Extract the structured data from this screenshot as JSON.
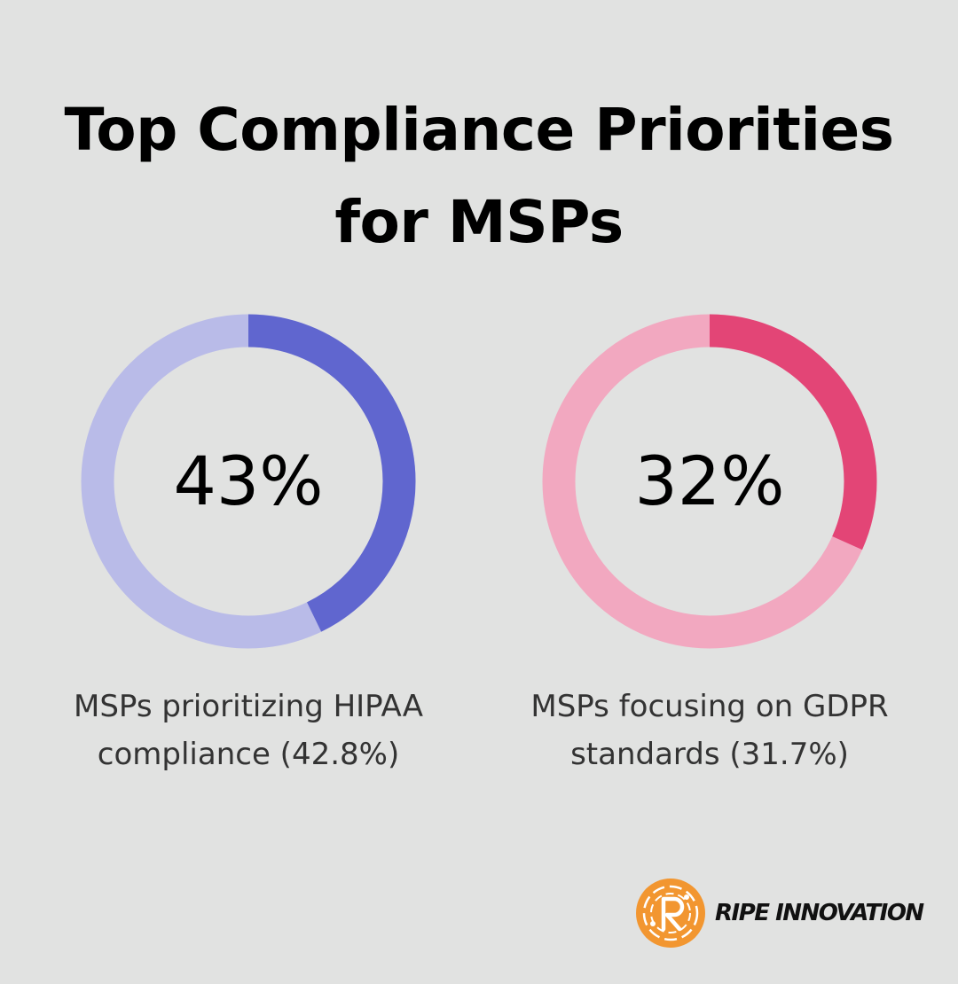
{
  "title": {
    "line1": "Top Compliance Priorities",
    "line2": "for MSPs"
  },
  "chart_data": [
    {
      "type": "pie",
      "variant": "donut",
      "value_percent": 42.8,
      "center_label": "43%",
      "caption_line1": "MSPs prioritizing HIPAA",
      "caption_line2": "compliance (42.8%)",
      "colors": {
        "filled": "#6066cf",
        "track": "#b9bbe8"
      }
    },
    {
      "type": "pie",
      "variant": "donut",
      "value_percent": 31.7,
      "center_label": "32%",
      "caption_line1": "MSPs focusing on GDPR",
      "caption_line2": "standards (31.7%)",
      "colors": {
        "filled": "#e34576",
        "track": "#f2a8c0"
      }
    }
  ],
  "brand": {
    "name": "RIPE INNOVATION",
    "logo_icon": "ripe-innovation-logo-icon",
    "color": "#f29630"
  },
  "colors": {
    "background": "#e1e2e1"
  }
}
